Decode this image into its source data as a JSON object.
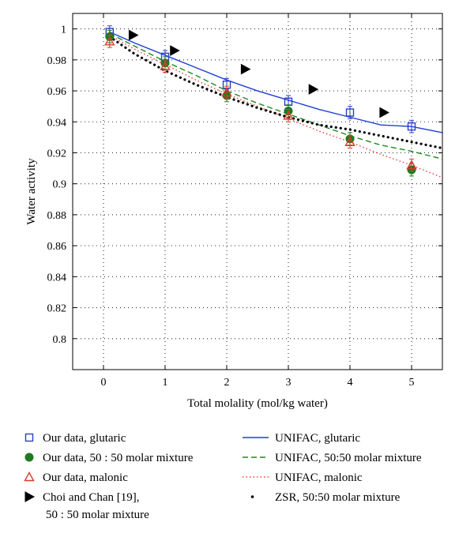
{
  "chart_data": {
    "type": "scatter",
    "title": "",
    "xlabel": "Total molality (mol/kg water)",
    "ylabel": "Water activity",
    "xlim": [
      -0.5,
      5.5
    ],
    "ylim": [
      0.78,
      1.01
    ],
    "xticks": [
      "0",
      "1",
      "2",
      "3",
      "4",
      "5"
    ],
    "yticks": [
      "0.8",
      "0.82",
      "0.84",
      "0.86",
      "0.88",
      "0.9",
      "0.92",
      "0.94",
      "0.96",
      "0.98",
      "1"
    ],
    "grid": true,
    "legend_position": "below",
    "series": [
      {
        "name": "Our data, glutaric",
        "kind": "points",
        "marker": "square-open",
        "color": "#2b3fc9",
        "x": [
          0.1,
          1,
          2,
          3,
          4,
          5
        ],
        "y": [
          0.998,
          0.982,
          0.964,
          0.953,
          0.946,
          0.937
        ],
        "err": [
          0.004,
          0.004,
          0.004,
          0.004,
          0.004,
          0.004
        ]
      },
      {
        "name": "Our data, 50 : 50 molar mixture",
        "kind": "points",
        "marker": "circle-filled",
        "color": "#1f7a1f",
        "x": [
          0.1,
          1,
          2,
          3,
          4,
          5
        ],
        "y": [
          0.995,
          0.978,
          0.957,
          0.947,
          0.929,
          0.909
        ],
        "err": [
          0.004,
          0.004,
          0.004,
          0.004,
          0.004,
          0.004
        ]
      },
      {
        "name": "Our data, malonic",
        "kind": "points",
        "marker": "triangle-open",
        "color": "#d93a2b",
        "x": [
          0.1,
          1,
          2,
          3,
          4,
          5
        ],
        "y": [
          0.992,
          0.976,
          0.959,
          0.944,
          0.927,
          0.912
        ],
        "err": [
          0.004,
          0.004,
          0.004,
          0.004,
          0.004,
          0.004
        ]
      },
      {
        "name": "Choi and Chan [19],",
        "name_line2": "50 : 50 molar mixture",
        "kind": "points",
        "marker": "triangle-right-filled",
        "color": "#000000",
        "x": [
          0.48,
          1.15,
          2.3,
          3.4,
          4.55
        ],
        "y": [
          0.996,
          0.986,
          0.974,
          0.961,
          0.946
        ]
      },
      {
        "name": "UNIFAC, glutaric",
        "kind": "line",
        "dash": "solid",
        "color": "#1f3fd6",
        "x": [
          0.1,
          0.5,
          1,
          1.5,
          2,
          2.5,
          3,
          3.5,
          4,
          4.5,
          5,
          5.5
        ],
        "y": [
          0.998,
          0.991,
          0.983,
          0.975,
          0.967,
          0.96,
          0.954,
          0.948,
          0.943,
          0.938,
          0.937,
          0.933
        ]
      },
      {
        "name": "UNIFAC, 50:50 molar mixture",
        "kind": "line",
        "dash": "dashed",
        "color": "#1f8a1f",
        "x": [
          0.1,
          0.5,
          1,
          1.5,
          2,
          2.5,
          3,
          3.5,
          4,
          4.5,
          5,
          5.5
        ],
        "y": [
          0.997,
          0.989,
          0.979,
          0.97,
          0.96,
          0.952,
          0.945,
          0.938,
          0.931,
          0.925,
          0.921,
          0.916
        ]
      },
      {
        "name": "UNIFAC, malonic",
        "kind": "line",
        "dash": "dotted",
        "color": "#e0403a",
        "x": [
          0.1,
          0.5,
          1,
          1.5,
          2,
          2.5,
          3,
          3.5,
          4,
          4.5,
          5,
          5.5
        ],
        "y": [
          0.996,
          0.987,
          0.977,
          0.967,
          0.958,
          0.95,
          0.942,
          0.934,
          0.927,
          0.919,
          0.912,
          0.904
        ]
      },
      {
        "name": "ZSR, 50:50 molar mixture",
        "kind": "line",
        "dash": "dots",
        "color": "#000000",
        "x": [
          0.1,
          0.5,
          1,
          1.5,
          2,
          2.5,
          3,
          3.5,
          4,
          4.5,
          5,
          5.5
        ],
        "y": [
          0.995,
          0.984,
          0.973,
          0.964,
          0.956,
          0.949,
          0.943,
          0.938,
          0.935,
          0.931,
          0.927,
          0.923
        ]
      }
    ]
  }
}
